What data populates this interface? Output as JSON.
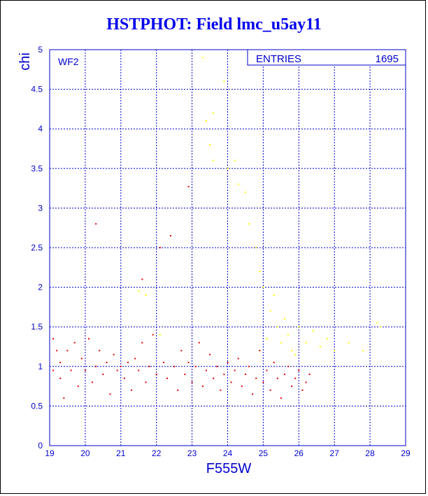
{
  "window": {
    "border_color": "#000000",
    "background": "#ffffff"
  },
  "chart_data": {
    "type": "scatter",
    "title": "HSTPHOT: Field lmc_u5ay11",
    "xlabel": "F555W",
    "ylabel": "chi",
    "panel_label": "WF2",
    "stats_box": {
      "label": "ENTRIES",
      "value": "1695"
    },
    "xlim": [
      19,
      29
    ],
    "ylim": [
      0,
      5
    ],
    "xticks": [
      "19",
      "20",
      "21",
      "22",
      "23",
      "24",
      "25",
      "26",
      "27",
      "28",
      "29"
    ],
    "yticks": [
      "0",
      "0.5",
      "1",
      "1.5",
      "2",
      "2.5",
      "3",
      "3.5",
      "4",
      "4.5",
      "5"
    ],
    "grid": true,
    "colors": {
      "axis": "#0000cc",
      "title": "#0000ee",
      "selected_series": "#ee0000",
      "rejected_series": "#ffff00"
    },
    "series": [
      {
        "color": "#ee0000",
        "points": [
          [
            19.1,
            1.35
          ],
          [
            19.1,
            0.95
          ],
          [
            19.2,
            1.2
          ],
          [
            19.3,
            0.85
          ],
          [
            19.3,
            1.05
          ],
          [
            19.4,
            0.6
          ],
          [
            19.5,
            1.2
          ],
          [
            19.6,
            0.95
          ],
          [
            19.7,
            1.3
          ],
          [
            19.8,
            0.75
          ],
          [
            19.9,
            1.1
          ],
          [
            20.0,
            0.95
          ],
          [
            20.1,
            1.35
          ],
          [
            20.2,
            0.8
          ],
          [
            20.3,
            1.0
          ],
          [
            20.3,
            2.8
          ],
          [
            20.4,
            1.2
          ],
          [
            20.5,
            0.9
          ],
          [
            20.6,
            1.05
          ],
          [
            20.7,
            0.65
          ],
          [
            20.8,
            1.15
          ],
          [
            20.9,
            0.95
          ],
          [
            21.0,
            1.0
          ],
          [
            21.1,
            0.85
          ],
          [
            21.2,
            1.05
          ],
          [
            21.3,
            0.7
          ],
          [
            21.4,
            1.1
          ],
          [
            21.5,
            0.95
          ],
          [
            21.6,
            1.3
          ],
          [
            21.6,
            2.1
          ],
          [
            21.7,
            0.8
          ],
          [
            21.8,
            1.0
          ],
          [
            21.9,
            1.4
          ],
          [
            22.0,
            0.9
          ],
          [
            22.1,
            2.5
          ],
          [
            22.2,
            1.05
          ],
          [
            22.3,
            0.85
          ],
          [
            22.4,
            2.65
          ],
          [
            22.5,
            1.0
          ],
          [
            22.6,
            0.7
          ],
          [
            22.7,
            1.2
          ],
          [
            22.8,
            0.9
          ],
          [
            22.9,
            1.05
          ],
          [
            22.9,
            3.27
          ],
          [
            23.0,
            0.8
          ],
          [
            23.1,
            1.0
          ],
          [
            23.2,
            1.3
          ],
          [
            23.3,
            0.75
          ],
          [
            23.4,
            0.95
          ],
          [
            23.5,
            1.15
          ],
          [
            23.6,
            0.85
          ],
          [
            23.7,
            1.0
          ],
          [
            23.8,
            0.7
          ],
          [
            23.9,
            0.9
          ],
          [
            24.0,
            1.05
          ],
          [
            24.1,
            0.8
          ],
          [
            24.2,
            0.95
          ],
          [
            24.3,
            1.1
          ],
          [
            24.4,
            0.75
          ],
          [
            24.5,
            0.9
          ],
          [
            24.6,
            1.0
          ],
          [
            24.7,
            0.65
          ],
          [
            24.8,
            0.85
          ],
          [
            24.9,
            1.2
          ],
          [
            25.0,
            0.8
          ],
          [
            25.1,
            0.95
          ],
          [
            25.2,
            0.7
          ],
          [
            25.3,
            1.05
          ],
          [
            25.4,
            0.85
          ],
          [
            25.5,
            0.6
          ],
          [
            25.6,
            0.9
          ],
          [
            25.7,
            1.0
          ],
          [
            25.8,
            0.75
          ],
          [
            25.9,
            0.85
          ],
          [
            26.0,
            0.95
          ],
          [
            26.1,
            0.7
          ],
          [
            26.2,
            0.8
          ],
          [
            26.3,
            0.9
          ]
        ]
      },
      {
        "color": "#ffff00",
        "points": [
          [
            21.5,
            1.95
          ],
          [
            21.7,
            1.9
          ],
          [
            22.1,
            1.4
          ],
          [
            23.3,
            4.9
          ],
          [
            23.4,
            4.1
          ],
          [
            23.6,
            4.2
          ],
          [
            23.9,
            4.6
          ],
          [
            23.5,
            3.8
          ],
          [
            23.6,
            3.6
          ],
          [
            24.0,
            3.5
          ],
          [
            24.2,
            3.6
          ],
          [
            24.3,
            3.3
          ],
          [
            24.5,
            3.2
          ],
          [
            24.6,
            2.8
          ],
          [
            24.8,
            2.5
          ],
          [
            24.9,
            2.2
          ],
          [
            25.0,
            2.0
          ],
          [
            25.2,
            1.7
          ],
          [
            25.3,
            1.9
          ],
          [
            25.4,
            1.5
          ],
          [
            25.5,
            1.3
          ],
          [
            25.6,
            1.6
          ],
          [
            25.7,
            1.4
          ],
          [
            25.8,
            1.2
          ],
          [
            26.0,
            1.5
          ],
          [
            26.2,
            1.3
          ],
          [
            26.4,
            1.45
          ],
          [
            26.6,
            1.25
          ],
          [
            26.8,
            1.35
          ],
          [
            27.0,
            1.2
          ],
          [
            27.4,
            1.3
          ],
          [
            27.8,
            1.2
          ],
          [
            28.2,
            1.55
          ],
          [
            28.3,
            1.5
          ],
          [
            25.1,
            1.35
          ],
          [
            25.9,
            1.15
          ]
        ]
      }
    ]
  }
}
